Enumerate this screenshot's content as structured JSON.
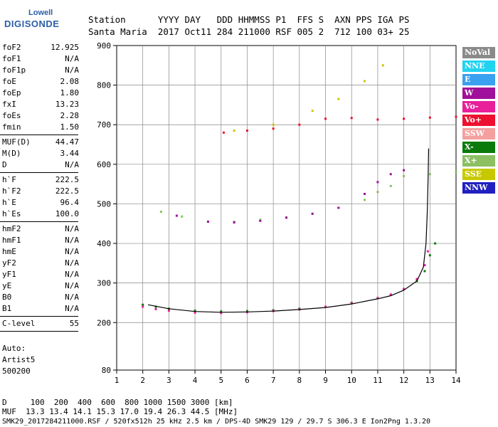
{
  "logo": {
    "top": "Lowell",
    "main": "DIGISONDE"
  },
  "header": {
    "row1": "Station      YYYY DAY   DDD HHMMSS P1  FFS S  AXN PPS IGA PS",
    "row2": "Santa Maria  2017 Oct11 284 211000 RSF 005 2  712 100 03+ 25"
  },
  "params_group1": [
    {
      "label": "foF2",
      "value": "12.925"
    },
    {
      "label": "foF1",
      "value": "N/A"
    },
    {
      "label": "foF1p",
      "value": "N/A"
    },
    {
      "label": "foE",
      "value": "2.08"
    },
    {
      "label": "foEp",
      "value": "1.80"
    },
    {
      "label": "fxI",
      "value": "13.23"
    },
    {
      "label": "foEs",
      "value": "2.28"
    },
    {
      "label": "fmin",
      "value": "1.50"
    }
  ],
  "params_group2": [
    {
      "label": "MUF(D)",
      "value": "44.47"
    },
    {
      "label": "M(D)",
      "value": "3.44"
    },
    {
      "label": "D",
      "value": "N/A"
    }
  ],
  "params_group3": [
    {
      "label": "h`F",
      "value": "222.5"
    },
    {
      "label": "h`F2",
      "value": "222.5"
    },
    {
      "label": "h`E",
      "value": "96.4"
    },
    {
      "label": "h`Es",
      "value": "100.0"
    }
  ],
  "params_group4": [
    {
      "label": "hmF2",
      "value": "N/A"
    },
    {
      "label": "hmF1",
      "value": "N/A"
    },
    {
      "label": "hmE",
      "value": "N/A"
    },
    {
      "label": "yF2",
      "value": "N/A"
    },
    {
      "label": "yF1",
      "value": "N/A"
    },
    {
      "label": "yE",
      "value": "N/A"
    },
    {
      "label": "B0",
      "value": "N/A"
    },
    {
      "label": "B1",
      "value": "N/A"
    }
  ],
  "clevel": {
    "label": "C-level",
    "value": "55"
  },
  "auto": {
    "line1": "Auto:",
    "line2": "Artist5",
    "line3": "500200"
  },
  "legend": [
    {
      "name": "NoVal",
      "color": "#8a8a8a"
    },
    {
      "name": "NNE",
      "color": "#22d3f0"
    },
    {
      "name": "E",
      "color": "#3aa0f0"
    },
    {
      "name": "W",
      "color": "#a0109a"
    },
    {
      "name": "Vo-",
      "color": "#e8209a"
    },
    {
      "name": "Vo+",
      "color": "#ee1030"
    },
    {
      "name": "SSW",
      "color": "#f4a0a0"
    },
    {
      "name": "X-",
      "color": "#0a7a0a"
    },
    {
      "name": "X+",
      "color": "#8cc063"
    },
    {
      "name": "SSE",
      "color": "#c8c800"
    },
    {
      "name": "NNW",
      "color": "#2020c0"
    }
  ],
  "footer": {
    "line1": "D     100  200  400  600  800 1000 1500 3000 [km]",
    "line2": "MUF  13.3 13.4 14.1 15.3 17.0 19.4 26.3 44.5 [MHz]",
    "line3": "SMK29_2017284211000.RSF / 520fx512h 25 kHz 2.5 km / DPS-4D SMK29 129 / 29.7 S 306.3 E Ion2Png 1.3.20"
  },
  "chart_data": {
    "type": "scatter",
    "xlim": [
      1,
      14
    ],
    "ylim": [
      80,
      900
    ],
    "x_ticks": [
      1,
      2,
      3,
      4,
      5,
      6,
      7,
      8,
      9,
      10,
      11,
      12,
      13,
      14
    ],
    "y_ticks": [
      80,
      200,
      300,
      400,
      500,
      600,
      700,
      800,
      900
    ],
    "grid": true,
    "series": [
      {
        "name": "X-",
        "color": "#0a7a0a",
        "points": [
          [
            2.0,
            245
          ],
          [
            2.5,
            240
          ],
          [
            3,
            235
          ],
          [
            4,
            230
          ],
          [
            5,
            228
          ],
          [
            6,
            229
          ],
          [
            7,
            231
          ],
          [
            8,
            235
          ],
          [
            9,
            240
          ],
          [
            10,
            250
          ],
          [
            11,
            262
          ],
          [
            11.5,
            270
          ],
          [
            12,
            285
          ],
          [
            12.5,
            305
          ],
          [
            12.8,
            330
          ],
          [
            13.0,
            370
          ],
          [
            13.2,
            400
          ]
        ]
      },
      {
        "name": "Vo-",
        "color": "#e8209a",
        "points": [
          [
            2.0,
            240
          ],
          [
            2.5,
            234
          ],
          [
            3,
            230
          ],
          [
            4,
            225
          ],
          [
            5,
            224
          ],
          [
            6,
            226
          ],
          [
            7,
            229
          ],
          [
            8,
            233
          ],
          [
            9,
            240
          ],
          [
            10,
            249
          ],
          [
            11,
            262
          ],
          [
            11.5,
            271
          ],
          [
            12,
            285
          ],
          [
            12.5,
            310
          ],
          [
            12.8,
            345
          ],
          [
            12.92,
            380
          ]
        ]
      },
      {
        "name": "X+",
        "color": "#8cc063",
        "points": [
          [
            2.7,
            480
          ],
          [
            3.5,
            468
          ],
          [
            4.5,
            455
          ],
          [
            5.5,
            455
          ],
          [
            6.5,
            460
          ],
          [
            7.5,
            466
          ],
          [
            8.5,
            475
          ],
          [
            9.5,
            490
          ],
          [
            10.5,
            510
          ],
          [
            11,
            530
          ],
          [
            11.5,
            545
          ],
          [
            12,
            570
          ],
          [
            13,
            575
          ],
          [
            14,
            580
          ]
        ]
      },
      {
        "name": "W",
        "color": "#a0109a",
        "points": [
          [
            3.3,
            470
          ],
          [
            4.5,
            455
          ],
          [
            5.5,
            453
          ],
          [
            6.5,
            457
          ],
          [
            7.5,
            465
          ],
          [
            8.5,
            475
          ],
          [
            9.5,
            490
          ],
          [
            10.5,
            525
          ],
          [
            11,
            555
          ],
          [
            11.5,
            575
          ],
          [
            12,
            585
          ]
        ]
      },
      {
        "name": "Vo+",
        "color": "#ee1030",
        "points": [
          [
            5.1,
            680
          ],
          [
            6,
            685
          ],
          [
            7,
            690
          ],
          [
            8,
            700
          ],
          [
            9,
            715
          ],
          [
            10,
            717
          ],
          [
            11,
            713
          ],
          [
            12,
            715
          ],
          [
            13,
            718
          ],
          [
            14,
            720
          ]
        ]
      },
      {
        "name": "SSE",
        "color": "#c8c800",
        "points": [
          [
            5.5,
            685
          ],
          [
            7,
            700
          ],
          [
            8.5,
            735
          ],
          [
            9.5,
            765
          ],
          [
            10.5,
            810
          ],
          [
            11.2,
            850
          ]
        ]
      }
    ],
    "trace": {
      "name": "",
      "color": "#000000",
      "points": [
        [
          2.2,
          245
        ],
        [
          3,
          235
        ],
        [
          4,
          228
        ],
        [
          5,
          226
        ],
        [
          6,
          227
        ],
        [
          7,
          229
        ],
        [
          8,
          233
        ],
        [
          9,
          238
        ],
        [
          10,
          247
        ],
        [
          11,
          260
        ],
        [
          11.5,
          268
        ],
        [
          12,
          282
        ],
        [
          12.5,
          305
        ],
        [
          12.75,
          340
        ],
        [
          12.85,
          400
        ],
        [
          12.9,
          480
        ],
        [
          12.93,
          560
        ],
        [
          12.95,
          640
        ]
      ]
    }
  }
}
